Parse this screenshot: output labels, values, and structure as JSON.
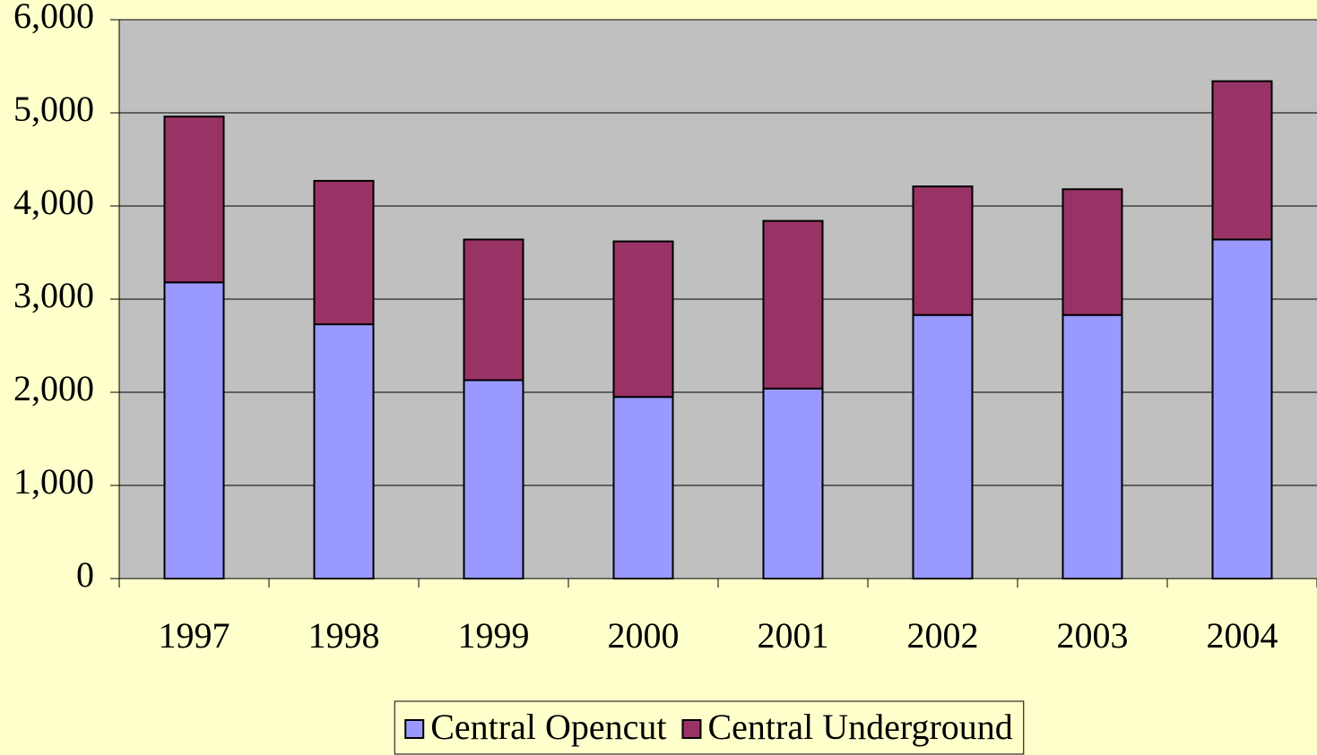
{
  "chart_data": {
    "type": "stacked-bar",
    "categories": [
      "1997",
      "1998",
      "1999",
      "2000",
      "2001",
      "2002",
      "2003",
      "2004"
    ],
    "series": [
      {
        "name": "Central Opencut",
        "color": "#9999ff",
        "values": [
          3180,
          2730,
          2130,
          1950,
          2040,
          2830,
          2830,
          3640
        ]
      },
      {
        "name": "Central Underground",
        "color": "#993366",
        "values": [
          1780,
          1540,
          1510,
          1670,
          1800,
          1380,
          1350,
          1700
        ]
      }
    ],
    "ylim": [
      0,
      6000
    ],
    "yticks": [
      0,
      {
        "value": 1000,
        "label": "1,000"
      },
      {
        "value": 2000,
        "label": "2,000"
      },
      {
        "value": 3000,
        "label": "3,000"
      },
      {
        "value": 4000,
        "label": "4,000"
      },
      {
        "value": 5000,
        "label": "5,000"
      },
      {
        "value": 6000,
        "label": "6,000"
      }
    ],
    "grid": true,
    "plot_background": "#c0c0c0",
    "legend": "bottom"
  }
}
